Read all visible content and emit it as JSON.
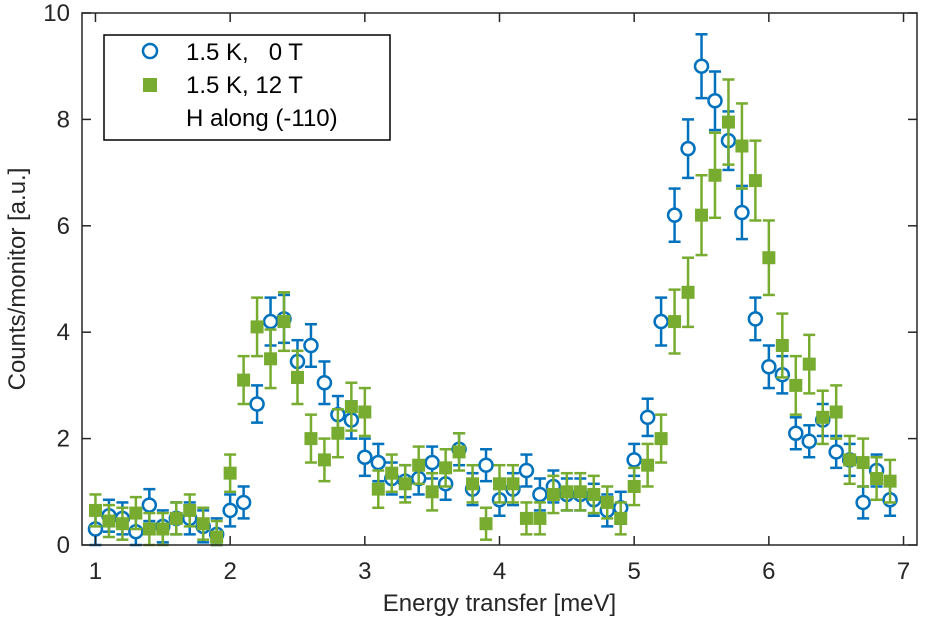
{
  "chart_data": {
    "type": "scatter",
    "title": "",
    "xlabel": "Energy transfer [meV]",
    "ylabel": "Counts/monitor [a.u.]",
    "xlim": [
      0.9,
      7.1
    ],
    "ylim": [
      0,
      10
    ],
    "xticks": [
      1,
      2,
      3,
      4,
      5,
      6,
      7
    ],
    "yticks": [
      0,
      2,
      4,
      6,
      8,
      10
    ],
    "grid": false,
    "legend_position": "top-left",
    "legend_note": "H along (-110)",
    "series": [
      {
        "name": "1.5 K,   0 T",
        "marker": "open-circle",
        "color": "#0072bd",
        "x": [
          1.0,
          1.1,
          1.2,
          1.3,
          1.4,
          1.5,
          1.6,
          1.7,
          1.8,
          1.9,
          2.0,
          2.1,
          2.2,
          2.3,
          2.4,
          2.5,
          2.6,
          2.7,
          2.8,
          2.9,
          3.0,
          3.1,
          3.2,
          3.3,
          3.4,
          3.5,
          3.6,
          3.7,
          3.8,
          3.9,
          4.0,
          4.1,
          4.2,
          4.3,
          4.4,
          4.5,
          4.6,
          4.7,
          4.8,
          4.9,
          5.0,
          5.1,
          5.2,
          5.3,
          5.4,
          5.5,
          5.6,
          5.7,
          5.8,
          5.9,
          6.0,
          6.1,
          6.2,
          6.3,
          6.4,
          6.5,
          6.6,
          6.7,
          6.8,
          6.9
        ],
        "y": [
          0.3,
          0.55,
          0.5,
          0.25,
          0.75,
          0.35,
          0.5,
          0.5,
          0.35,
          0.2,
          0.65,
          0.8,
          2.65,
          4.2,
          4.25,
          3.45,
          3.75,
          3.05,
          2.45,
          2.35,
          1.65,
          1.55,
          1.25,
          1.2,
          1.25,
          1.55,
          1.15,
          1.8,
          1.05,
          1.5,
          0.85,
          1.05,
          1.4,
          0.95,
          1.1,
          0.95,
          0.95,
          0.85,
          0.65,
          0.7,
          1.6,
          2.4,
          4.2,
          6.2,
          7.45,
          9.0,
          8.35,
          7.6,
          6.25,
          4.25,
          3.35,
          3.2,
          2.1,
          1.95,
          2.35,
          1.75,
          1.6,
          0.8,
          1.4,
          0.85
        ],
        "err": [
          0.3,
          0.3,
          0.3,
          0.3,
          0.3,
          0.3,
          0.3,
          0.3,
          0.3,
          0.3,
          0.3,
          0.3,
          0.35,
          0.45,
          0.45,
          0.4,
          0.4,
          0.4,
          0.35,
          0.35,
          0.35,
          0.35,
          0.3,
          0.3,
          0.3,
          0.3,
          0.3,
          0.3,
          0.3,
          0.3,
          0.3,
          0.3,
          0.3,
          0.3,
          0.3,
          0.3,
          0.3,
          0.3,
          0.3,
          0.3,
          0.3,
          0.35,
          0.45,
          0.5,
          0.55,
          0.6,
          0.55,
          0.55,
          0.5,
          0.4,
          0.4,
          0.35,
          0.3,
          0.3,
          0.3,
          0.3,
          0.3,
          0.3,
          0.3,
          0.3
        ]
      },
      {
        "name": "1.5 K, 12 T",
        "marker": "filled-square",
        "color": "#77ac30",
        "x": [
          1.0,
          1.1,
          1.2,
          1.3,
          1.4,
          1.5,
          1.6,
          1.7,
          1.8,
          1.9,
          2.0,
          2.1,
          2.2,
          2.3,
          2.4,
          2.5,
          2.6,
          2.7,
          2.8,
          2.9,
          3.0,
          3.1,
          3.2,
          3.3,
          3.4,
          3.5,
          3.6,
          3.7,
          3.8,
          3.9,
          4.0,
          4.1,
          4.2,
          4.3,
          4.4,
          4.5,
          4.6,
          4.7,
          4.8,
          4.9,
          5.0,
          5.1,
          5.2,
          5.3,
          5.4,
          5.5,
          5.6,
          5.7,
          5.8,
          5.9,
          6.0,
          6.1,
          6.2,
          6.3,
          6.4,
          6.5,
          6.6,
          6.7,
          6.8,
          6.9
        ],
        "y": [
          0.65,
          0.45,
          0.4,
          0.6,
          0.3,
          0.3,
          0.5,
          0.65,
          0.4,
          0.15,
          1.35,
          3.1,
          4.1,
          3.5,
          4.2,
          3.15,
          2.0,
          1.6,
          2.1,
          2.6,
          2.5,
          1.05,
          1.35,
          1.15,
          1.5,
          1.0,
          1.45,
          1.75,
          1.15,
          0.4,
          1.15,
          1.15,
          0.5,
          0.5,
          0.95,
          1.0,
          1.0,
          0.95,
          0.8,
          0.5,
          1.1,
          1.5,
          2.0,
          4.2,
          4.75,
          6.2,
          6.95,
          7.95,
          7.5,
          6.85,
          5.4,
          3.75,
          3.0,
          3.4,
          2.4,
          2.5,
          1.6,
          1.55,
          1.25,
          1.2
        ],
        "err": [
          0.3,
          0.3,
          0.3,
          0.3,
          0.3,
          0.3,
          0.3,
          0.3,
          0.3,
          0.3,
          0.35,
          0.45,
          0.55,
          0.55,
          0.55,
          0.5,
          0.45,
          0.4,
          0.45,
          0.45,
          0.45,
          0.35,
          0.35,
          0.35,
          0.35,
          0.35,
          0.35,
          0.35,
          0.35,
          0.3,
          0.35,
          0.35,
          0.3,
          0.3,
          0.35,
          0.35,
          0.35,
          0.35,
          0.3,
          0.3,
          0.35,
          0.4,
          0.45,
          0.6,
          0.65,
          0.75,
          0.8,
          0.8,
          0.8,
          0.75,
          0.7,
          0.6,
          0.55,
          0.55,
          0.5,
          0.5,
          0.45,
          0.45,
          0.4,
          0.4
        ]
      }
    ]
  }
}
